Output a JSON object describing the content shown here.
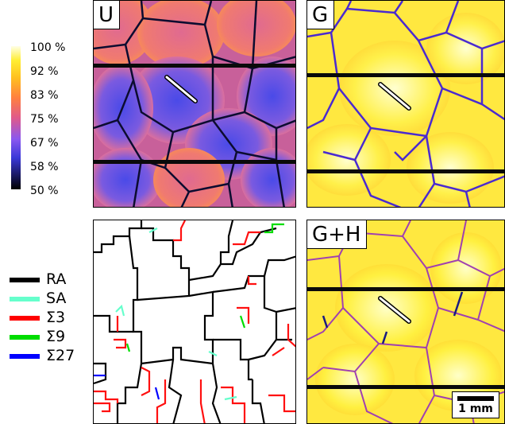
{
  "panels": {
    "u": {
      "label": "U"
    },
    "g": {
      "label": "G"
    },
    "boundaries": {
      "label": ""
    },
    "gh": {
      "label": "G+H"
    }
  },
  "colorbar": {
    "ticks": [
      "100 %",
      "92 %",
      "83 %",
      "75 %",
      "67 %",
      "58 %",
      "50 %"
    ],
    "colors": [
      "#ffffe6",
      "#ffee33",
      "#ffc020",
      "#ff8040",
      "#e05a8a",
      "#8a58f0",
      "#3a38d8",
      "#151450",
      "#000000"
    ]
  },
  "legend": {
    "items": [
      {
        "label": "RA",
        "color": "#000000"
      },
      {
        "label": "SA",
        "color": "#66ffcc"
      },
      {
        "label": "Σ3",
        "color": "#ff0000"
      },
      {
        "label": "Σ9",
        "color": "#00dd00"
      },
      {
        "label": "Σ27",
        "color": "#0000ff"
      }
    ]
  },
  "scalebar": {
    "label": "1 mm"
  }
}
